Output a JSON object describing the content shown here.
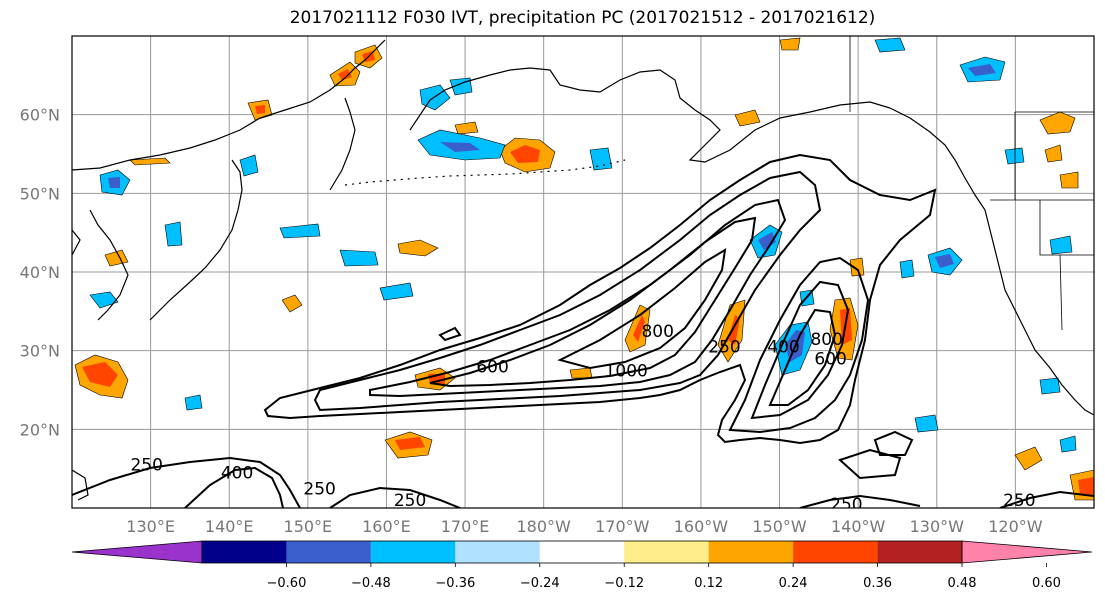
{
  "title": "2017021112 F030 IVT, precipitation PC (2017021512 - 2017021612)",
  "map": {
    "lon_range": [
      120,
      250
    ],
    "lat_range": [
      10,
      70
    ],
    "lat_ticks": [
      {
        "lat": 20,
        "label": "20°N"
      },
      {
        "lat": 30,
        "label": "30°N"
      },
      {
        "lat": 40,
        "label": "40°N"
      },
      {
        "lat": 50,
        "label": "50°N"
      },
      {
        "lat": 60,
        "label": "60°N"
      }
    ],
    "lon_ticks": [
      {
        "lon": 130,
        "label": "130°E"
      },
      {
        "lon": 140,
        "label": "140°E"
      },
      {
        "lon": 150,
        "label": "150°E"
      },
      {
        "lon": 160,
        "label": "160°E"
      },
      {
        "lon": 170,
        "label": "170°E"
      },
      {
        "lon": 180,
        "label": "180°W"
      },
      {
        "lon": 190,
        "label": "170°W"
      },
      {
        "lon": 200,
        "label": "160°W"
      },
      {
        "lon": 210,
        "label": "150°W"
      },
      {
        "lon": 220,
        "label": "140°W"
      },
      {
        "lon": 230,
        "label": "130°W"
      },
      {
        "lon": 240,
        "label": "120°W"
      }
    ],
    "grid": true,
    "ivt_contour_labels": [
      {
        "text": "250",
        "lon": 129.5,
        "lat": 15.5
      },
      {
        "text": "400",
        "lon": 141,
        "lat": 14.5
      },
      {
        "text": "250",
        "lon": 151.5,
        "lat": 12.5
      },
      {
        "text": "250",
        "lon": 163,
        "lat": 11
      },
      {
        "text": "600",
        "lon": 173.5,
        "lat": 28
      },
      {
        "text": "1000",
        "lon": 190.5,
        "lat": 27.5
      },
      {
        "text": "800",
        "lon": 194.5,
        "lat": 32.5
      },
      {
        "text": "250",
        "lon": 203,
        "lat": 30.5
      },
      {
        "text": "400",
        "lon": 210.5,
        "lat": 30.5
      },
      {
        "text": "800",
        "lon": 216,
        "lat": 31.5
      },
      {
        "text": "600",
        "lon": 216.5,
        "lat": 29
      },
      {
        "text": "250",
        "lon": 218.5,
        "lat": 10.5
      },
      {
        "text": "250",
        "lon": 240.5,
        "lat": 11
      }
    ]
  },
  "colorbar": {
    "colors": [
      "#9933cc",
      "#00008b",
      "#3a5fcd",
      "#00bfff",
      "#b0e2ff",
      "#ffffff",
      "#ffec8b",
      "#ffa500",
      "#ff4500",
      "#b22222",
      "#ff82ab"
    ],
    "tick_labels": [
      "−0.60",
      "−0.48",
      "−0.36",
      "−0.24",
      "−0.12",
      "0.12",
      "0.24",
      "0.36",
      "0.48",
      "0.60"
    ]
  }
}
